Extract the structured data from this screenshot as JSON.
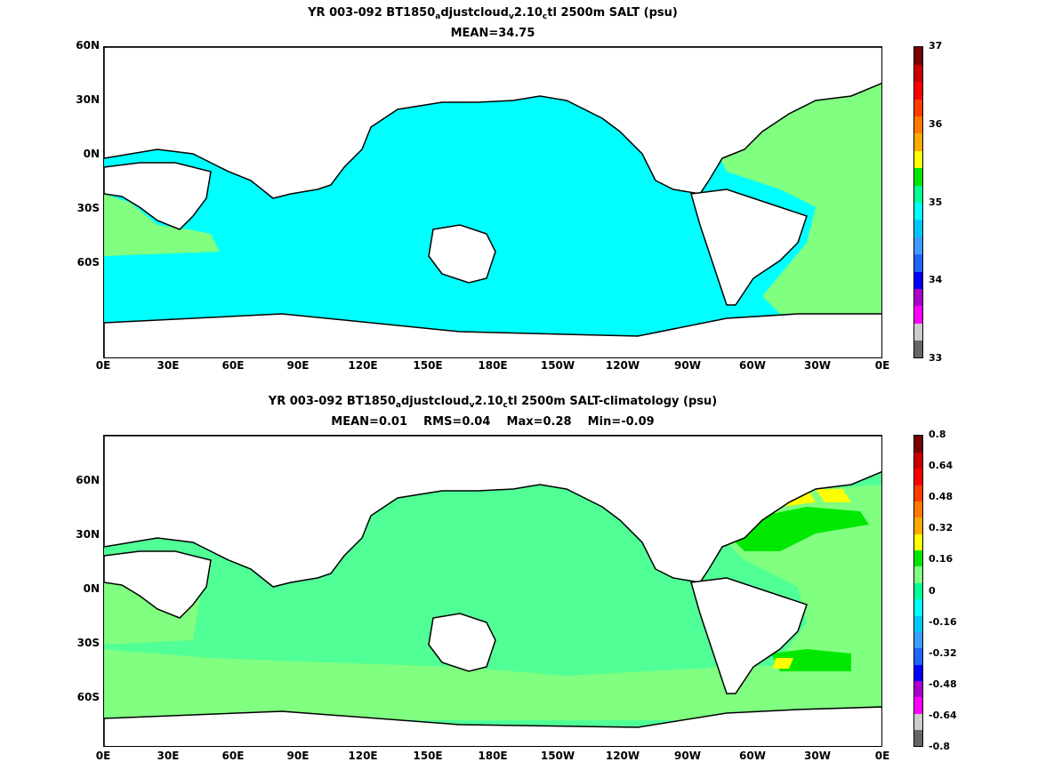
{
  "panels": [
    {
      "title_parts": [
        "YR 003-092 BT1850",
        "a",
        "djustcloud",
        "v",
        "2.10",
        "c",
        "tl 2500m SALT (psu)"
      ],
      "stats": "MEAN=34.75",
      "lat_labels": [
        "60N",
        "30N",
        "0N",
        "30S",
        "60S"
      ],
      "lon_labels": [
        "0E",
        "30E",
        "60E",
        "90E",
        "120E",
        "150E",
        "180E",
        "150W",
        "120W",
        "90W",
        "60W",
        "30W",
        "0E"
      ],
      "colorbar": {
        "colors": [
          "#666666",
          "#cccccc",
          "#ff00ff",
          "#aa00cc",
          "#0000ff",
          "#1e64ff",
          "#3c9cff",
          "#00c8ff",
          "#00ffff",
          "#00ff96",
          "#00e800",
          "#ffff00",
          "#ffaa00",
          "#ff7800",
          "#ff3c00",
          "#ff0000",
          "#c80000",
          "#780000"
        ],
        "ticks": [
          "37",
          "36",
          "35",
          "34",
          "33"
        ],
        "tick_values": [
          37,
          36,
          35,
          34,
          33
        ],
        "range": [
          33,
          37
        ]
      },
      "field_color": "#00ffff",
      "atlantic_color": "#80ff80",
      "accent_color": "#50ff96"
    },
    {
      "title_parts": [
        "YR 003-092 BT1850",
        "a",
        "djustcloud",
        "v",
        "2.10",
        "c",
        "tl 2500m SALT-climatology (psu)"
      ],
      "stats": "MEAN=0.01    RMS=0.04    Max=0.28    Min=-0.09",
      "lat_labels": [
        "60N",
        "30N",
        "0N",
        "30S",
        "60S"
      ],
      "lon_labels": [
        "0E",
        "30E",
        "60E",
        "90E",
        "120E",
        "150E",
        "180E",
        "150W",
        "120W",
        "90W",
        "60W",
        "30W",
        "0E"
      ],
      "colorbar": {
        "colors": [
          "#666666",
          "#cccccc",
          "#ff00ff",
          "#aa00cc",
          "#0000ff",
          "#1e64ff",
          "#3c9cff",
          "#00c8ff",
          "#00ffff",
          "#00ff96",
          "#80ff80",
          "#00e800",
          "#ffff00",
          "#ffaa00",
          "#ff7800",
          "#ff3c00",
          "#ff0000",
          "#c80000",
          "#780000"
        ],
        "ticks": [
          "0.8",
          "0.64",
          "0.48",
          "0.32",
          "0.16",
          "0",
          "-0.16",
          "-0.32",
          "-0.48",
          "-0.64",
          "-0.8"
        ],
        "tick_values": [
          0.8,
          0.64,
          0.48,
          0.32,
          0.16,
          0,
          -0.16,
          -0.32,
          -0.48,
          -0.64,
          -0.8
        ],
        "range": [
          -0.8,
          0.8
        ]
      },
      "field_color": "#50ff96",
      "atlantic_color": "#80ff80",
      "accent_color": "#00e800"
    }
  ]
}
